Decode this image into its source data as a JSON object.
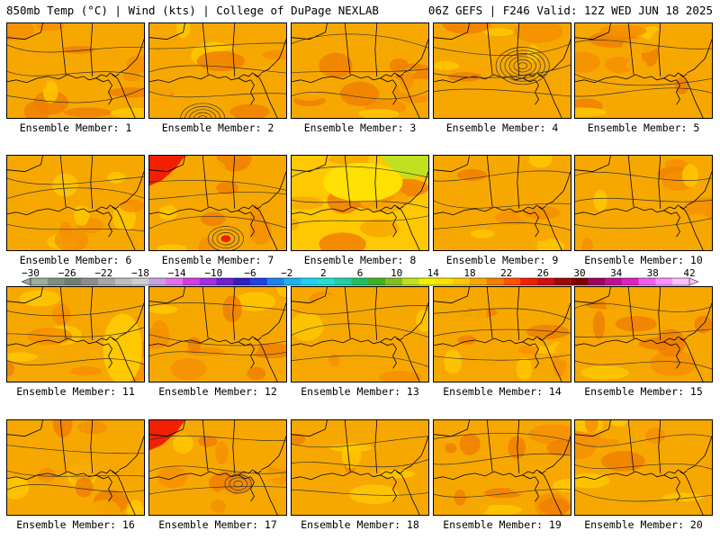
{
  "header": {
    "left_title": "850mb Temp (°C) | Wind (kts) | College of DuPage NEXLAB",
    "right_title": "06Z GEFS | F246 Valid: 12Z WED JUN 18 2025"
  },
  "members": [
    {
      "label": "Ensemble Member: 1"
    },
    {
      "label": "Ensemble Member: 2"
    },
    {
      "label": "Ensemble Member: 3"
    },
    {
      "label": "Ensemble Member: 4"
    },
    {
      "label": "Ensemble Member: 5"
    },
    {
      "label": "Ensemble Member: 6"
    },
    {
      "label": "Ensemble Member: 7"
    },
    {
      "label": "Ensemble Member: 8"
    },
    {
      "label": "Ensemble Member: 9"
    },
    {
      "label": "Ensemble Member: 10"
    },
    {
      "label": "Ensemble Member: 11"
    },
    {
      "label": "Ensemble Member: 12"
    },
    {
      "label": "Ensemble Member: 13"
    },
    {
      "label": "Ensemble Member: 14"
    },
    {
      "label": "Ensemble Member: 15"
    },
    {
      "label": "Ensemble Member: 16"
    },
    {
      "label": "Ensemble Member: 17"
    },
    {
      "label": "Ensemble Member: 18"
    },
    {
      "label": "Ensemble Member: 19"
    },
    {
      "label": "Ensemble Member: 20"
    }
  ],
  "colorbar": {
    "tick_labels": [
      "−30",
      "−26",
      "−22",
      "−18",
      "−14",
      "−10",
      "−6",
      "−2",
      "2",
      "6",
      "10",
      "14",
      "18",
      "22",
      "26",
      "30",
      "34",
      "38",
      "42"
    ],
    "colors": [
      "#9cad9c",
      "#7f8f7f",
      "#6f7f6f",
      "#8c8c8c",
      "#a6a6a6",
      "#bdbdbd",
      "#cfcfcf",
      "#c8a0e0",
      "#e070e8",
      "#d040e0",
      "#a030e0",
      "#7020d0",
      "#3020c0",
      "#2040e0",
      "#2080f0",
      "#20b0f0",
      "#20d0f0",
      "#20e0d0",
      "#20d0a0",
      "#20c060",
      "#40b020",
      "#80c020",
      "#c0e020",
      "#f0f000",
      "#ffe000",
      "#ffc800",
      "#f7a800",
      "#f08000",
      "#ff5000",
      "#f02000",
      "#d01010",
      "#a00808",
      "#800000",
      "#a00060",
      "#c01090",
      "#e020c0",
      "#f060f0",
      "#ff90ff",
      "#ffc0ff"
    ]
  }
}
